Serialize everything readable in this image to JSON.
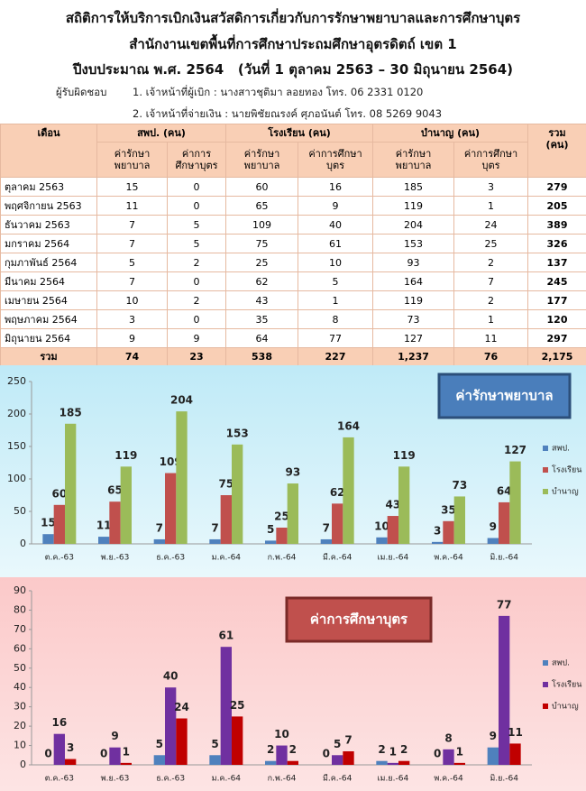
{
  "header": {
    "title_lines": [
      "สถิติการให้บริการเบิกเงินสวัสดิการเกี่ยวกับการรักษาพยาบาลและการศึกษาบุตร",
      "สำนักงานเขตพื้นที่การศึกษาประถมศึกษาอุตรดิตถ์ เขต 1",
      "ปีงบประมาณ พ.ศ. 2564   (วันที่ 1 ตุลาคม 2563 – 30 มิถุนายน 2564)"
    ],
    "responsible_label": "ผู้รับผิดชอบ",
    "responsible": [
      "1. เจ้าหน้าที่ผู้เบิก : นางสาวชุติมา ลอยทอง โทร. 06 2331 0120",
      "2. เจ้าหน้าที่จ่ายเงิน : นายพิชัยณรงค์ ศุภอนันต์ โทร. 08 5269 9043"
    ]
  },
  "table": {
    "month_header": "เดือน",
    "groups": [
      "สพป. (คน)",
      "โรงเรียน (คน)",
      "บำนาญ (คน)"
    ],
    "total_header": [
      "รวม",
      "(คน)"
    ],
    "subheaders": [
      "ค่ารักษาพยาบาล",
      "ค่าการศึกษาบุตร",
      "ค่ารักษาพยาบาล",
      "ค่าการศึกษาบุตร",
      "ค่ารักษาพยาบาล",
      "ค่าการศึกษาบุตร"
    ],
    "rows": [
      {
        "month": "ตุลาคม 2563",
        "values": [
          15,
          0,
          60,
          16,
          185,
          3,
          279
        ]
      },
      {
        "month": "พฤศจิกายน 2563",
        "values": [
          11,
          0,
          65,
          9,
          119,
          1,
          205
        ]
      },
      {
        "month": "ธันวาคม 2563",
        "values": [
          7,
          5,
          109,
          40,
          204,
          24,
          389
        ]
      },
      {
        "month": "มกราคม 2564",
        "values": [
          7,
          5,
          75,
          61,
          153,
          25,
          326
        ]
      },
      {
        "month": "กุมภาพันธ์ 2564",
        "values": [
          5,
          2,
          25,
          10,
          93,
          2,
          137
        ]
      },
      {
        "month": "มีนาคม 2564",
        "values": [
          7,
          0,
          62,
          5,
          164,
          7,
          245
        ]
      },
      {
        "month": "เมษายน 2564",
        "values": [
          10,
          2,
          43,
          1,
          119,
          2,
          177
        ]
      },
      {
        "month": "พฤษภาคม 2564",
        "values": [
          3,
          0,
          35,
          8,
          73,
          1,
          120
        ]
      },
      {
        "month": "มิถุนายน 2564",
        "values": [
          9,
          9,
          64,
          77,
          127,
          11,
          297
        ]
      }
    ],
    "total": {
      "label": "รวม",
      "values": [
        74,
        23,
        538,
        227,
        "1,237",
        76,
        "2,175"
      ]
    }
  },
  "chart_data": [
    {
      "type": "bar",
      "title": "ค่ารักษาพยาบาล",
      "categories": [
        "ต.ค.-63",
        "พ.ย.-63",
        "ธ.ค.-63",
        "ม.ค.-64",
        "ก.พ.-64",
        "มี.ค.-64",
        "เม.ย.-64",
        "พ.ค.-64",
        "มิ.ย.-64"
      ],
      "series": [
        {
          "name": "สพป.",
          "color": "#4f81bd",
          "values": [
            15,
            11,
            7,
            7,
            5,
            7,
            10,
            3,
            9
          ]
        },
        {
          "name": "โรงเรียน",
          "color": "#c0504d",
          "values": [
            60,
            65,
            109,
            75,
            25,
            62,
            43,
            35,
            64
          ]
        },
        {
          "name": "บำนาญ",
          "color": "#9bbb59",
          "values": [
            185,
            119,
            204,
            153,
            93,
            164,
            119,
            73,
            127
          ]
        }
      ],
      "ylim": [
        0,
        250
      ],
      "yticks": [
        0,
        50,
        100,
        150,
        200,
        250
      ],
      "grid": false,
      "legend": "right"
    },
    {
      "type": "bar",
      "title": "ค่าการศึกษาบุตร",
      "categories": [
        "ต.ค.-63",
        "พ.ย.-63",
        "ธ.ค.-63",
        "ม.ค.-64",
        "ก.พ.-64",
        "มี.ค.-64",
        "เม.ย.-64",
        "พ.ค.-64",
        "มิ.ย.-64"
      ],
      "series": [
        {
          "name": "สพป.",
          "color": "#4f81bd",
          "values": [
            0,
            0,
            5,
            5,
            2,
            0,
            2,
            0,
            9
          ]
        },
        {
          "name": "โรงเรียน",
          "color": "#7030a0",
          "values": [
            16,
            9,
            40,
            61,
            10,
            5,
            1,
            8,
            77
          ]
        },
        {
          "name": "บำนาญ",
          "color": "#c00000",
          "values": [
            3,
            1,
            24,
            25,
            2,
            7,
            2,
            1,
            11
          ]
        }
      ],
      "ylim": [
        0,
        90
      ],
      "yticks": [
        0,
        10,
        20,
        30,
        40,
        50,
        60,
        70,
        80,
        90
      ],
      "grid": false,
      "legend": "right"
    }
  ]
}
